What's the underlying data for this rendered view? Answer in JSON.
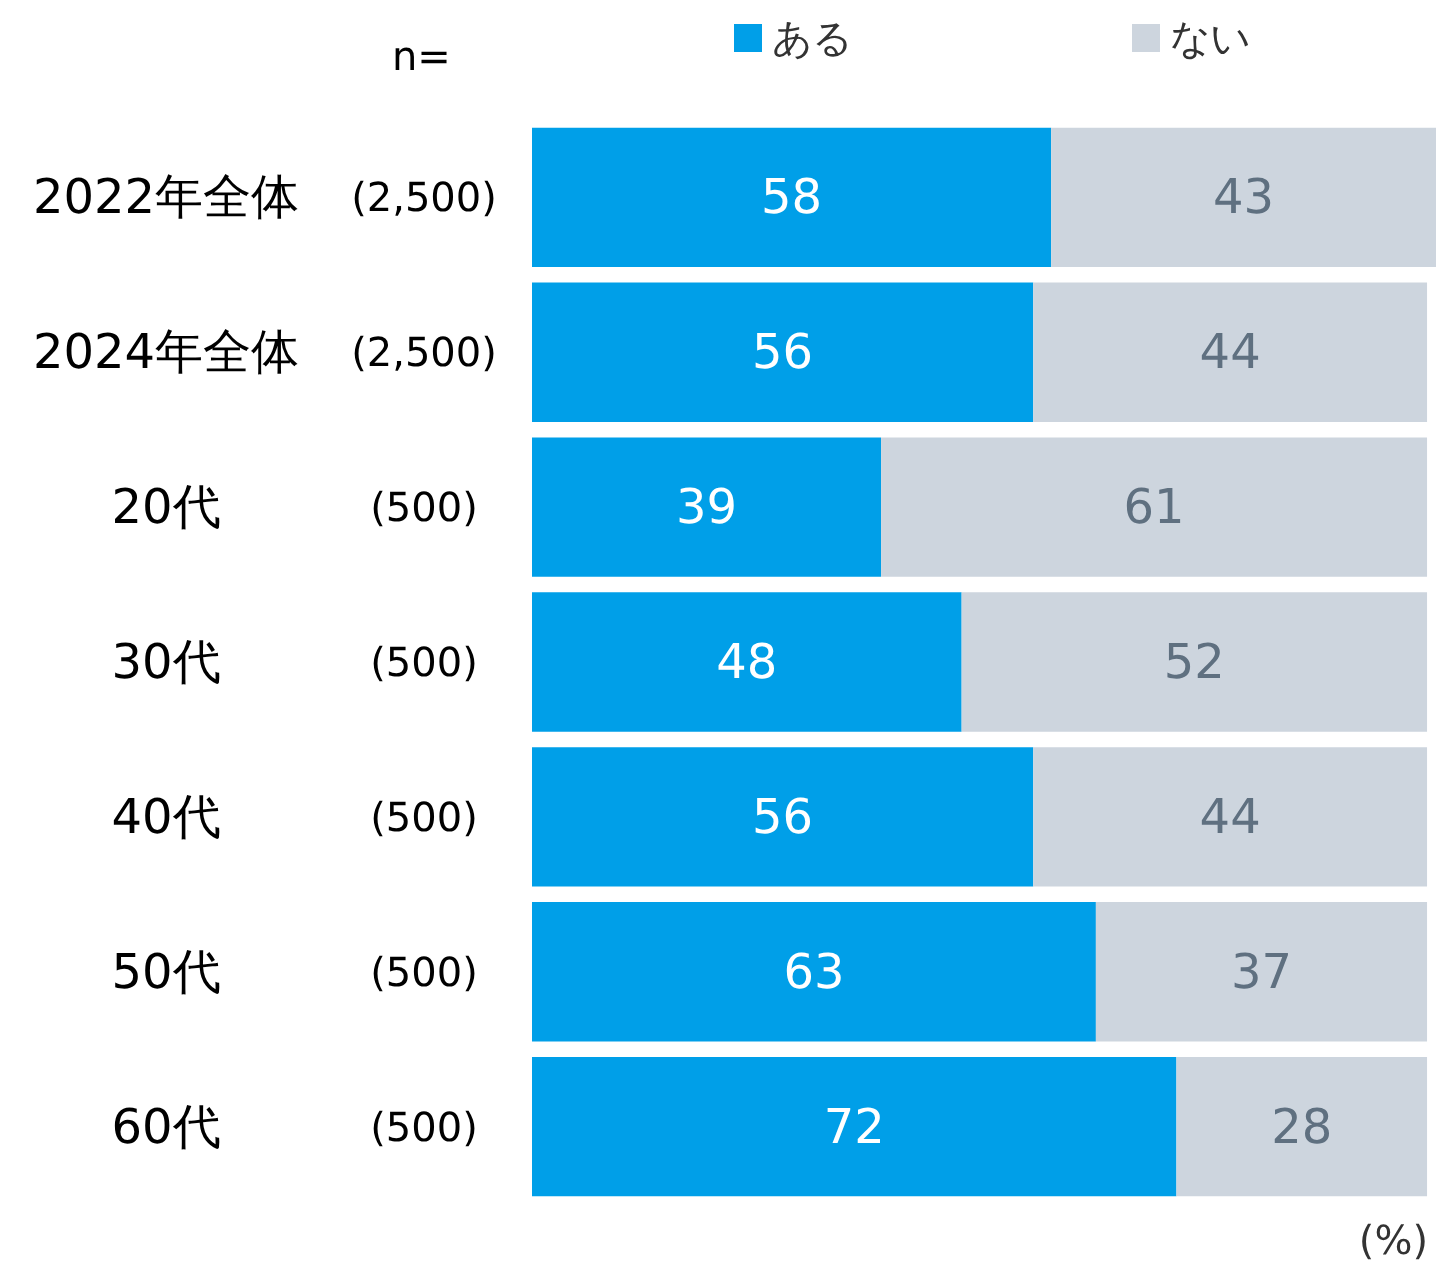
{
  "chart_data": {
    "type": "bar",
    "orientation": "horizontal",
    "stacked": true,
    "data_labels": true,
    "legend": "top",
    "categories": [
      "2022年全体",
      "2024年全体",
      "20代",
      "30代",
      "40代",
      "50代",
      "60代"
    ],
    "series": [
      {
        "name": "ある",
        "color": "#009fe8",
        "values": [
          58,
          56,
          39,
          48,
          56,
          63,
          72
        ]
      },
      {
        "name": "ない",
        "color": "#cdd5de",
        "values": [
          43,
          44,
          61,
          52,
          44,
          37,
          28
        ]
      }
    ],
    "annotations": [
      "n=",
      "(%)",
      "(2,500)",
      "(2,500)",
      "(500)",
      "(500)",
      "(500)",
      "(500)",
      "(500)"
    ]
  }
}
